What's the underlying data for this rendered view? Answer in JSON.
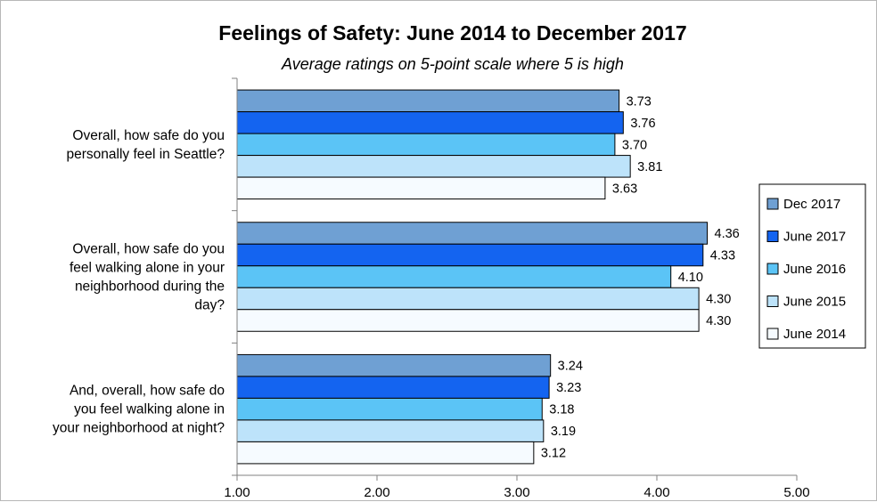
{
  "chart_data": {
    "type": "bar",
    "orientation": "horizontal",
    "title": "Feelings of Safety: June 2014 to December 2017",
    "subtitle": "Average ratings on 5-point scale where 5 is high",
    "categories": [
      [
        "Overall, how safe do you",
        "personally feel in Seattle?"
      ],
      [
        "Overall, how safe do you",
        "feel walking alone in your",
        "neighborhood during the",
        "day?"
      ],
      [
        "And, overall, how safe do",
        "you feel walking alone in",
        "your neighborhood at night?"
      ]
    ],
    "series": [
      {
        "name": "Dec 2017",
        "color": "#6fa0d3",
        "values": [
          3.73,
          4.36,
          3.24
        ],
        "labels": [
          "3.73",
          "4.36",
          "3.24"
        ]
      },
      {
        "name": "June 2017",
        "color": "#1464f0",
        "values": [
          3.76,
          4.33,
          3.23
        ],
        "labels": [
          "3.76",
          "4.33",
          "3.23"
        ]
      },
      {
        "name": "June 2016",
        "color": "#5bc4f6",
        "values": [
          3.7,
          4.1,
          3.18
        ],
        "labels": [
          "3.70",
          "4.10",
          "3.18"
        ]
      },
      {
        "name": "June 2015",
        "color": "#bde3fa",
        "values": [
          3.81,
          4.3,
          3.19
        ],
        "labels": [
          "3.81",
          "4.30",
          "3.19"
        ]
      },
      {
        "name": "June 2014",
        "color": "#f6fbff",
        "values": [
          3.63,
          4.3,
          3.12
        ],
        "labels": [
          "3.63",
          "4.30",
          "3.12"
        ]
      }
    ],
    "xlim": [
      1.0,
      5.0
    ],
    "xticks": [
      1,
      2,
      3,
      4,
      5
    ],
    "xtick_labels": [
      "1.00",
      "2.00",
      "3.00",
      "4.00",
      "5.00"
    ],
    "xlabel": "",
    "ylabel": "",
    "grid": false,
    "legend_position": "right"
  }
}
